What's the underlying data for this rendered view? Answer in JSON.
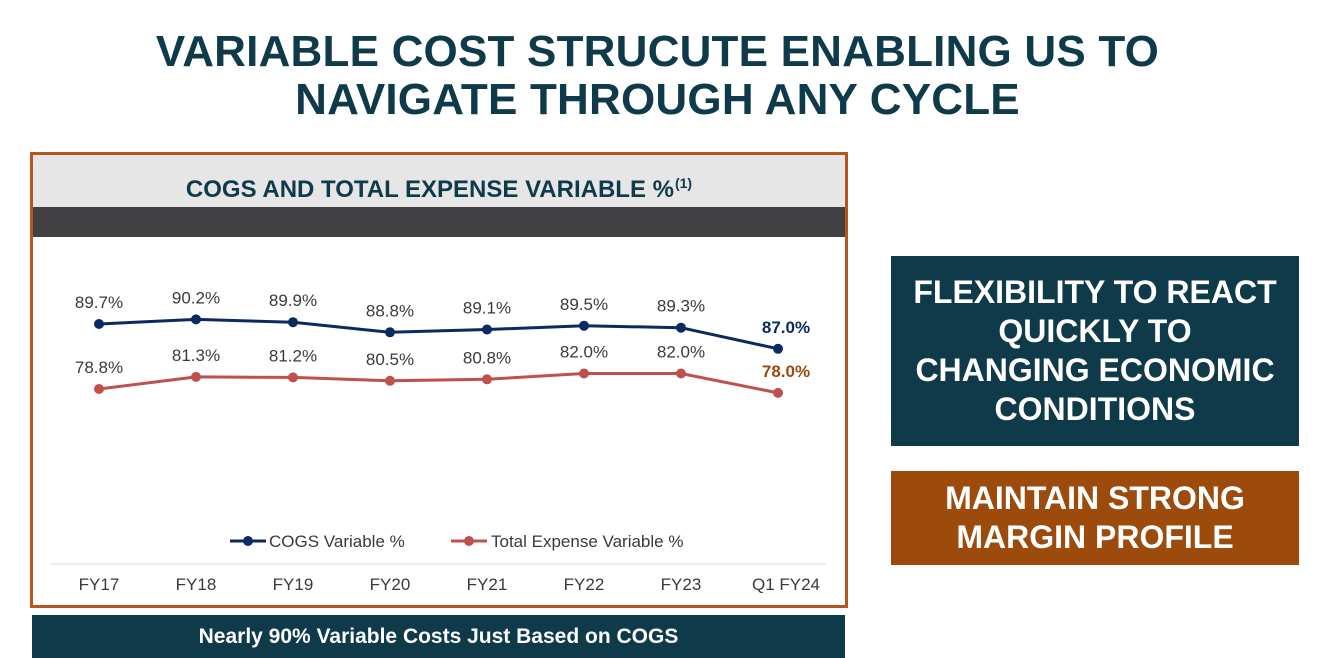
{
  "page": {
    "title_lines": [
      "VARIABLE COST STRUCUTE ENABLING US TO",
      "NAVIGATE THROUGH ANY CYCLE"
    ]
  },
  "panel": {
    "header": "COGS AND TOTAL EXPENSE VARIABLE %",
    "header_sup": "(1)"
  },
  "banner": "Nearly 90% Variable Costs Just Based on COGS",
  "callouts": [
    {
      "lines": [
        "FLEXIBILITY TO REACT",
        "QUICKLY TO",
        "CHANGING ECONOMIC",
        "CONDITIONS"
      ],
      "color": "#0f3a4a"
    },
    {
      "lines": [
        "MAINTAIN STRONG",
        "MARGIN PROFILE"
      ],
      "color": "#9c4b0c"
    }
  ],
  "chart_data": {
    "type": "line",
    "title": "",
    "xlabel": "",
    "ylabel": "",
    "categories": [
      "FY17",
      "FY18",
      "FY19",
      "FY20",
      "FY21",
      "FY22",
      "FY23",
      "Q1 FY24"
    ],
    "series": [
      {
        "name": "COGS Variable %",
        "color": "#0c2a62",
        "values": [
          89.7,
          90.2,
          89.9,
          88.8,
          89.1,
          89.5,
          89.3,
          87.0
        ],
        "labels": [
          "89.7%",
          "90.2%",
          "89.9%",
          "88.8%",
          "89.1%",
          "89.5%",
          "89.3%",
          "87.0%"
        ],
        "last_label_color": "#0c2a62"
      },
      {
        "name": "Total Expense Variable %",
        "color": "#c0504d",
        "values": [
          78.8,
          81.3,
          81.2,
          80.5,
          80.8,
          82.0,
          82.0,
          78.0
        ],
        "labels": [
          "78.8%",
          "81.3%",
          "81.2%",
          "80.5%",
          "80.8%",
          "82.0%",
          "82.0%",
          "78.0%"
        ],
        "last_label_color": "#9c4b0c"
      }
    ],
    "grid": false,
    "legend": "bottom"
  }
}
